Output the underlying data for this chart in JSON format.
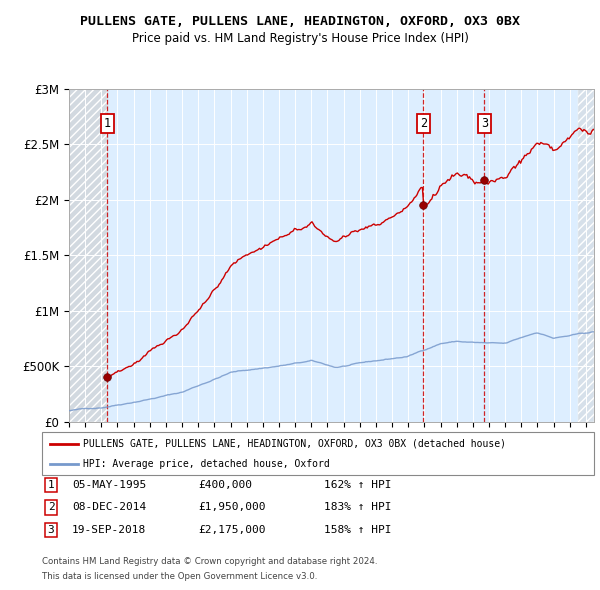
{
  "title": "PULLENS GATE, PULLENS LANE, HEADINGTON, OXFORD, OX3 0BX",
  "subtitle": "Price paid vs. HM Land Registry's House Price Index (HPI)",
  "ylim": [
    0,
    3000000
  ],
  "yticks": [
    0,
    500000,
    1000000,
    1500000,
    2000000,
    2500000,
    3000000
  ],
  "ytick_labels": [
    "£0",
    "£500K",
    "£1M",
    "£1.5M",
    "£2M",
    "£2.5M",
    "£3M"
  ],
  "xlim_start": 1993.0,
  "xlim_end": 2025.5,
  "plot_bg_color": "#ddeeff",
  "hatch_color": "#c8c8c8",
  "red_line_color": "#cc0000",
  "blue_line_color": "#7799cc",
  "sale_marker_color": "#880000",
  "legend_label_red": "PULLENS GATE, PULLENS LANE, HEADINGTON, OXFORD, OX3 0BX (detached house)",
  "legend_label_blue": "HPI: Average price, detached house, Oxford",
  "sales": [
    {
      "num": 1,
      "date": "05-MAY-1995",
      "year": 1995.37,
      "price": 400000,
      "hpi_pct": "162%",
      "direction": "↑"
    },
    {
      "num": 2,
      "date": "08-DEC-2014",
      "year": 2014.93,
      "price": 1950000,
      "hpi_pct": "183%",
      "direction": "↑"
    },
    {
      "num": 3,
      "date": "19-SEP-2018",
      "year": 2018.72,
      "price": 2175000,
      "hpi_pct": "158%",
      "direction": "↑"
    }
  ],
  "footnote1": "Contains HM Land Registry data © Crown copyright and database right 2024.",
  "footnote2": "This data is licensed under the Open Government Licence v3.0."
}
